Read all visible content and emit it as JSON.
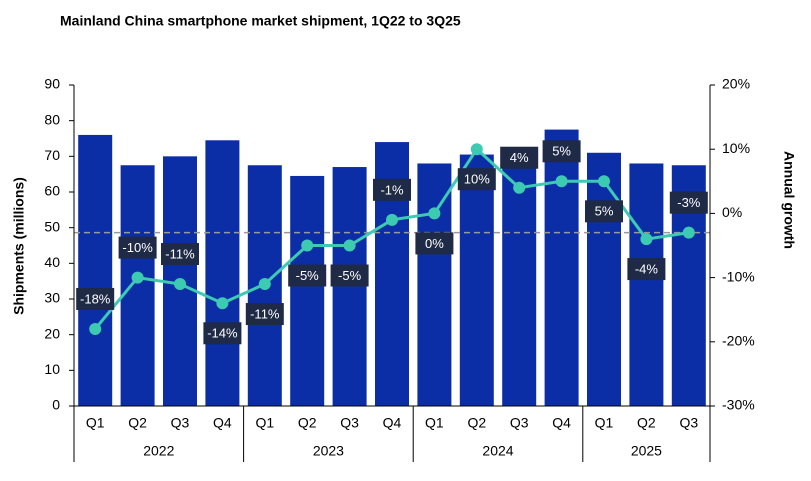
{
  "chart_data": {
    "type": "bar_line",
    "title": "Mainland China smartphone market shipment, 1Q22 to 3Q25",
    "y_label": "Shipments (millions)",
    "y2_label": "Annual growth",
    "categories": [
      "Q1",
      "Q2",
      "Q3",
      "Q4",
      "Q1",
      "Q2",
      "Q3",
      "Q4",
      "Q1",
      "Q2",
      "Q3",
      "Q4",
      "Q1",
      "Q2",
      "Q3"
    ],
    "groups": [
      {
        "label": "2022",
        "count": 4
      },
      {
        "label": "2023",
        "count": 4
      },
      {
        "label": "2024",
        "count": 4
      },
      {
        "label": "2025",
        "count": 3
      }
    ],
    "series": [
      {
        "name": "Shipments",
        "type": "bar",
        "color": "#0b2ea6",
        "values": [
          76,
          67.5,
          70,
          74.5,
          67.5,
          64.5,
          67,
          74,
          68,
          70.5,
          69,
          77.5,
          71,
          68,
          67.5
        ]
      },
      {
        "name": "Annual growth",
        "type": "line",
        "axis": "y2",
        "color": "#3ccbb2",
        "values": [
          -18,
          -10,
          -11,
          -14,
          -11,
          -5,
          -5,
          -1,
          0,
          10,
          4,
          5,
          5,
          -4,
          -3
        ],
        "value_labels": [
          "-18%",
          "-10%",
          "-11%",
          "-14%",
          "-11%",
          "-5%",
          "-5%",
          "-1%",
          "0%",
          "10%",
          "4%",
          "5%",
          "5%",
          "-4%",
          "-3%"
        ]
      }
    ],
    "ylim": [
      0,
      90
    ],
    "yticks": [
      0,
      10,
      20,
      30,
      40,
      50,
      60,
      70,
      80,
      90
    ],
    "y2lim": [
      -30,
      20
    ],
    "y2ticks": [
      {
        "value": -30,
        "label": "-30%"
      },
      {
        "value": -20,
        "label": "-20%"
      },
      {
        "value": -10,
        "label": "-10%"
      },
      {
        "value": 0,
        "label": "0%"
      },
      {
        "value": 10,
        "label": "10%"
      },
      {
        "value": 20,
        "label": "20%"
      }
    ],
    "dashed_line_y2": -3
  }
}
